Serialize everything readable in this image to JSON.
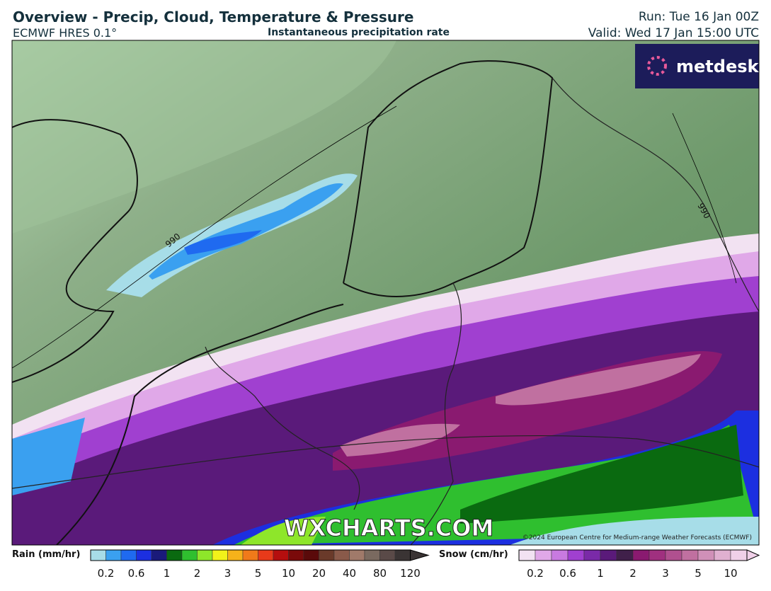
{
  "header": {
    "title": "Overview - Precip, Cloud, Temperature & Pressure",
    "model": "ECMWF HRES 0.1°",
    "subtitle": "Instantaneous precipitation rate",
    "run": "Run: Tue 16 Jan 00Z",
    "valid": "Valid: Wed 17 Jan 15:00 UTC"
  },
  "map": {
    "brand": "metdesk",
    "watermark": "WXCHARTS.COM",
    "copyright": "©2024 European Centre for Medium-range Weather Forecasts (ECMWF)",
    "contour_labels": [
      "990",
      "990"
    ]
  },
  "legend": {
    "rain": {
      "label": "Rain (mm/hr)",
      "ticks": [
        "0.2",
        "0.6",
        "1",
        "2",
        "3",
        "5",
        "10",
        "20",
        "40",
        "80",
        "120"
      ],
      "colors": [
        "#a7dde8",
        "#3aa0f0",
        "#1f6af0",
        "#1c2fe0",
        "#1a1a7a",
        "#0a6a10",
        "#2fbf2f",
        "#8ee62a",
        "#f2f21a",
        "#f5b21a",
        "#f07a1a",
        "#e83a1a",
        "#b50e0e",
        "#7a0a0a",
        "#5a0a0a",
        "#6a3a2a",
        "#8a5a4a",
        "#a07a6a",
        "#7a6a60",
        "#5a4a48",
        "#3a3434"
      ]
    },
    "snow": {
      "label": "Snow (cm/hr)",
      "ticks": [
        "0.2",
        "0.6",
        "1",
        "2",
        "3",
        "5",
        "10"
      ],
      "colors": [
        "#f2e2f2",
        "#e0a8e8",
        "#c87ae0",
        "#a040d0",
        "#7a2aa8",
        "#5a1a7a",
        "#40204a",
        "#8a1a70",
        "#a0307f",
        "#b0508f",
        "#c070a0",
        "#d090b8",
        "#e0b0d0",
        "#f0d0e8"
      ]
    }
  }
}
